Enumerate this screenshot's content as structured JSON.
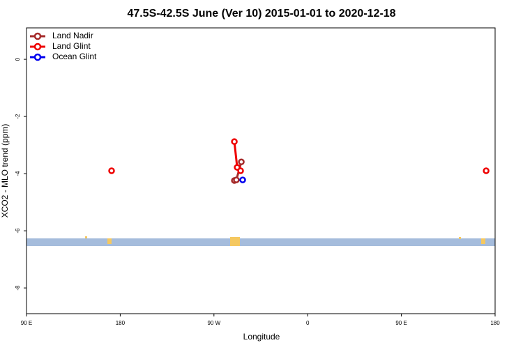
{
  "chart_data": {
    "type": "line",
    "title": "47.5S-42.5S June (Ver 10)   2015-01-01 to 2020-12-18",
    "x_label": "Longitude",
    "y_label": "XCO2 - MLO trend (ppm)",
    "xlim": [
      90,
      540
    ],
    "xticks": [
      {
        "value": 90,
        "label": "90 E"
      },
      180,
      {
        "value": 270,
        "label": "90 W"
      },
      {
        "value": 360,
        "label": "0"
      },
      {
        "value": 450,
        "label": "90 E"
      },
      {
        "value": 540,
        "label": "180"
      }
    ],
    "ylim": [
      -8.9,
      1.1
    ],
    "yticks": [
      0,
      -2,
      -4,
      -6,
      -8
    ],
    "legend": "top-left",
    "series": [
      {
        "name": "Land Nadir",
        "color": "#a52a2a",
        "x": [
          289.6,
          291.5,
          296.3
        ],
        "values": [
          -4.24,
          -4.22,
          -3.59
        ]
      },
      {
        "name": "Land Glint",
        "color": "#ee0000",
        "x": [
          171.7,
          null,
          289.6,
          292.3,
          295.6,
          null,
          531.4
        ],
        "values": [
          -3.9,
          null,
          -2.88,
          -3.78,
          -3.9,
          null,
          -3.9
        ]
      },
      {
        "name": "Ocean Glint",
        "color": "#0000ee",
        "x": [
          297.6
        ],
        "values": [
          -4.22
        ]
      }
    ]
  }
}
